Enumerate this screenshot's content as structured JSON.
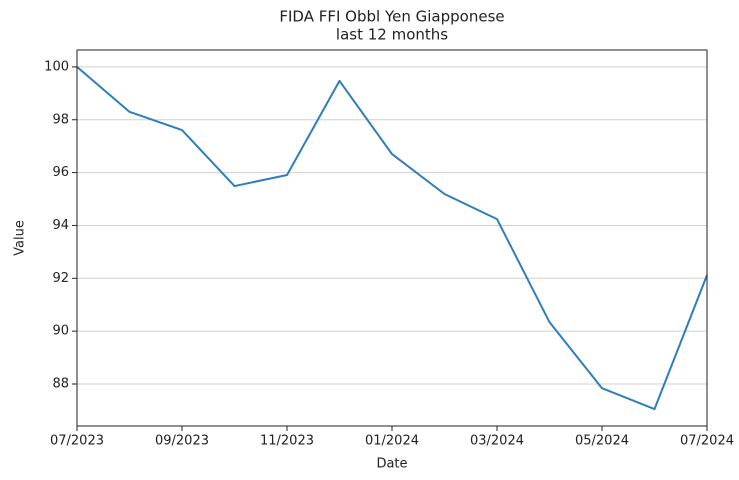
{
  "chart_data": {
    "type": "line",
    "title": "FIDA FFI Obbl Yen Giapponese",
    "subtitle": "last 12 months",
    "x_label": "Date",
    "y_label": "Value",
    "categories": [
      "07/2023",
      null,
      "09/2023",
      null,
      "11/2023",
      null,
      "01/2024",
      null,
      "03/2024",
      null,
      "05/2024",
      null,
      "07/2024"
    ],
    "series": [
      {
        "name": "FIDA FFI Obbl Yen Giapponese",
        "color": "#2e7ebc",
        "values": [
          100,
          98.3,
          97.61,
          95.49,
          95.91,
          99.47,
          96.7,
          95.19,
          94.24,
          90.34,
          87.84,
          87.05,
          92.12
        ]
      }
    ],
    "ylim": [
      86.41,
      100.64
    ],
    "yticks": [
      88,
      90,
      92,
      94,
      96,
      98,
      100
    ],
    "grid": true
  }
}
